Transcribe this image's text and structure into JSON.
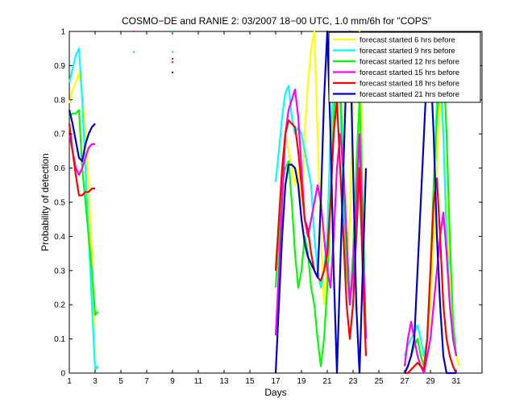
{
  "chart_data": {
    "type": "line",
    "title": "COSMO−DE and RANIE 2: 03/2007 18−00 UTC, 1.0 mm/6h for \"COPS\"",
    "xlabel": "Days",
    "ylabel": "Probability of detection",
    "xlim": [
      1,
      33
    ],
    "ylim": [
      0,
      1
    ],
    "xticks": [
      1,
      3,
      5,
      7,
      9,
      11,
      13,
      15,
      17,
      19,
      21,
      23,
      25,
      27,
      29,
      31
    ],
    "yticks": [
      0,
      0.1,
      0.2,
      0.3,
      0.4,
      0.5,
      0.6,
      0.7,
      0.8,
      0.9,
      1
    ],
    "legend_position": "top-right",
    "series": [
      {
        "name": "forecast started 6 hrs before",
        "color": "#ffff00",
        "x": [
          1,
          1.25,
          1.5,
          1.75,
          2,
          2.25,
          2.5,
          2.75,
          3,
          3.25,
          null,
          17,
          17.25,
          17.5,
          17.75,
          18,
          18.25,
          18.5,
          18.75,
          19,
          19.25,
          19.5,
          19.75,
          20,
          20.25,
          20.5,
          20.75,
          21,
          21.25,
          21.5,
          21.75,
          22,
          22.25,
          22.5,
          22.75,
          23,
          23.25,
          23.5,
          23.75,
          24,
          null,
          27,
          27.25,
          27.5,
          27.75,
          28,
          28.25,
          28.5,
          28.75,
          29,
          29.25,
          29.5,
          29.75,
          30,
          30.25,
          30.5,
          30.75,
          31,
          31.25
        ],
        "y": [
          0.79,
          0.83,
          0.85,
          0.88,
          0.82,
          0.7,
          0.55,
          0.35,
          0.01,
          0.02,
          null,
          0.3,
          0.45,
          0.6,
          0.7,
          0.65,
          0.6,
          0.55,
          0.6,
          0.5,
          0.7,
          0.85,
          0.95,
          1,
          0.7,
          0.4,
          0.2,
          0.35,
          0.6,
          0.8,
          0.9,
          0.85,
          0.6,
          0.3,
          0.45,
          0.8,
          0.95,
          1.0,
          0.5,
          0.1,
          null,
          0.0,
          0.02,
          0.05,
          0.08,
          0.1,
          0.05,
          0.02,
          0.1,
          0.2,
          0.4,
          0.6,
          0.8,
          0.7,
          0.5,
          0.3,
          0.1,
          0.05,
          0.02
        ]
      },
      {
        "name": "forecast started 9 hrs before",
        "color": "#00ffff",
        "x": [
          1,
          1.25,
          1.5,
          1.75,
          2,
          2.25,
          2.5,
          2.75,
          3,
          3.25,
          null,
          17,
          17.25,
          17.5,
          17.75,
          18,
          18.25,
          18.5,
          18.75,
          19,
          19.25,
          19.5,
          19.75,
          20,
          20.25,
          20.5,
          20.75,
          21,
          21.25,
          21.5,
          21.75,
          22,
          22.25,
          22.5,
          22.75,
          23,
          23.25,
          23.5,
          23.75,
          24,
          null,
          27,
          27.25,
          27.5,
          27.75,
          28,
          28.25,
          28.5,
          28.75,
          29,
          29.25,
          29.5,
          29.75,
          30,
          30.25,
          30.5,
          30.75,
          31
        ],
        "y": [
          0.85,
          0.89,
          0.93,
          0.95,
          0.8,
          0.6,
          0.4,
          0.2,
          0.01,
          0.02,
          null,
          0.56,
          0.65,
          0.75,
          0.82,
          0.84,
          0.75,
          0.7,
          0.72,
          0.7,
          0.65,
          0.6,
          0.55,
          0.4,
          0.3,
          0.25,
          0.3,
          0.4,
          0.7,
          0.85,
          0.95,
          0.8,
          0.5,
          0.3,
          0.2,
          0.3,
          0.5,
          0.7,
          0.4,
          0.1,
          null,
          0.05,
          0.08,
          0.1,
          0.12,
          0.14,
          0.1,
          0.05,
          0.1,
          0.3,
          0.5,
          0.8,
          0.9,
          0.7,
          0.4,
          0.2,
          0.1,
          0.05
        ]
      },
      {
        "name": "forecast started 12 hrs before",
        "color": "#00ff00",
        "x": [
          1,
          1.25,
          1.5,
          1.75,
          2,
          2.25,
          2.5,
          2.75,
          3,
          3.25,
          null,
          17,
          17.25,
          17.5,
          17.75,
          18,
          18.25,
          18.5,
          18.75,
          19,
          19.25,
          19.5,
          19.75,
          20,
          20.25,
          20.5,
          20.75,
          21,
          21.25,
          21.5,
          21.75,
          22,
          22.25,
          22.5,
          22.75,
          23,
          23.25,
          23.5,
          23.75,
          24,
          null,
          27,
          27.25,
          27.5,
          27.75,
          28,
          28.25,
          28.5,
          28.75,
          29,
          29.25,
          29.5,
          29.75,
          30,
          30.25,
          30.5,
          30.75,
          31
        ],
        "y": [
          0.75,
          0.76,
          0.76,
          0.77,
          0.6,
          0.5,
          0.4,
          0.3,
          0.17,
          0.18,
          null,
          0.25,
          0.4,
          0.55,
          0.6,
          0.62,
          0.5,
          0.35,
          0.25,
          0.3,
          0.4,
          0.35,
          0.25,
          0.2,
          0.1,
          0.02,
          0.1,
          0.25,
          0.5,
          0.75,
          0.9,
          0.85,
          0.6,
          0.3,
          0.2,
          0.35,
          0.6,
          0.8,
          0.5,
          0.1,
          null,
          0.0,
          0.02,
          0.05,
          0.08,
          0.1,
          0.05,
          0.02,
          0.1,
          0.3,
          0.55,
          0.75,
          0.85,
          0.92,
          0.7,
          0.4,
          0.15,
          0.05
        ]
      },
      {
        "name": "forecast started 15 hrs before",
        "color": "#ff00ff",
        "x": [
          1,
          1.25,
          1.5,
          1.75,
          2,
          2.25,
          2.5,
          2.75,
          3,
          null,
          17,
          17.25,
          17.5,
          17.75,
          18,
          18.25,
          18.5,
          18.75,
          19,
          19.25,
          19.5,
          19.75,
          20,
          20.25,
          20.5,
          20.75,
          21,
          21.25,
          21.5,
          21.75,
          22,
          22.25,
          22.5,
          22.75,
          23,
          23.25,
          23.5,
          23.75,
          24,
          null,
          27,
          27.25,
          27.5,
          27.75,
          28,
          28.25,
          28.5,
          28.75,
          29,
          29.25,
          29.5,
          29.75,
          30,
          30.25,
          30.5,
          30.75,
          31
        ],
        "y": [
          0.7,
          0.65,
          0.6,
          0.58,
          0.6,
          0.63,
          0.66,
          0.67,
          0.67,
          null,
          0.11,
          0.3,
          0.5,
          0.7,
          0.77,
          0.8,
          0.83,
          0.75,
          0.6,
          0.45,
          0.4,
          0.45,
          0.5,
          0.55,
          0.5,
          0.4,
          0.3,
          0.25,
          0.4,
          0.6,
          0.7,
          0.6,
          0.4,
          0.2,
          0.3,
          0.5,
          0.7,
          0.4,
          0.1,
          null,
          0.02,
          0.1,
          0.15,
          0.1,
          0.05,
          0.02,
          0.0,
          0.05,
          0.1,
          0.2,
          0.3,
          0.4,
          0.47,
          0.35,
          0.2,
          0.1,
          0.05
        ]
      },
      {
        "name": "forecast started 18 hrs before",
        "color": "#ff0000",
        "x": [
          1,
          1.25,
          1.5,
          1.75,
          2,
          2.25,
          2.5,
          2.75,
          3,
          null,
          17,
          17.25,
          17.5,
          17.75,
          18,
          18.25,
          18.5,
          18.75,
          19,
          19.25,
          19.5,
          19.75,
          20,
          20.25,
          20.5,
          20.75,
          21,
          21.25,
          21.5,
          21.75,
          22,
          22.25,
          22.5,
          22.75,
          23,
          23.25,
          23.5,
          23.75,
          24,
          null,
          27,
          27.25,
          27.5,
          27.75,
          28,
          28.25,
          28.5,
          28.75,
          29,
          29.25,
          29.5,
          29.75,
          30,
          30.25,
          30.5,
          30.75,
          31
        ],
        "y": [
          0.73,
          0.65,
          0.58,
          0.52,
          0.52,
          0.53,
          0.53,
          0.54,
          0.54,
          null,
          0.3,
          0.45,
          0.6,
          0.7,
          0.74,
          0.73,
          0.72,
          0.65,
          0.55,
          0.45,
          0.42,
          0.35,
          0.3,
          0.28,
          0.27,
          0.3,
          0.35,
          0.5,
          0.7,
          0.8,
          0.6,
          0.4,
          0.2,
          0.1,
          0.2,
          0.4,
          0.6,
          0.3,
          0.05,
          null,
          0.0,
          0.0,
          0.01,
          0.02,
          0.03,
          0.02,
          0.01,
          0.1,
          0.3,
          0.5,
          0.57,
          0.4,
          0.2,
          0.1,
          0.05,
          0.02,
          0.0
        ]
      },
      {
        "name": "forecast started 21 hrs before",
        "color": "#0000cd",
        "x": [
          1,
          1.25,
          1.5,
          1.75,
          2,
          2.25,
          2.5,
          2.75,
          3,
          null,
          17,
          17.25,
          17.5,
          17.75,
          18,
          18.25,
          18.5,
          18.75,
          19,
          19.25,
          19.5,
          19.75,
          20,
          20.25,
          20.5,
          20.75,
          21,
          21.25,
          21.5,
          21.75,
          22,
          22.25,
          22.5,
          22.75,
          23,
          23.25,
          23.5,
          23.75,
          24,
          null,
          27,
          27.25,
          27.5,
          27.75,
          28,
          28.25,
          28.5,
          28.75,
          29,
          29.25,
          29.5,
          29.75,
          30,
          30.25,
          30.5,
          30.75,
          31
        ],
        "y": [
          0.77,
          0.73,
          0.68,
          0.63,
          0.62,
          0.67,
          0.7,
          0.72,
          0.73,
          null,
          0.0,
          0.2,
          0.4,
          0.55,
          0.61,
          0.61,
          0.6,
          0.55,
          0.45,
          0.38,
          0.34,
          0.32,
          0.3,
          0.28,
          0.5,
          0.8,
          1.0,
          0.7,
          0.3,
          0.0,
          0.3,
          0.6,
          0.9,
          1.0,
          0.6,
          0.2,
          0.0,
          0.3,
          0.6,
          null,
          0.0,
          0.02,
          0.05,
          0.1,
          0.3,
          0.5,
          0.7,
          0.9,
          0.91,
          0.7,
          0.4,
          0.2,
          0.05,
          0.0,
          0.0,
          0.0,
          0.0
        ]
      }
    ],
    "markers": [
      {
        "x": 6,
        "y": 1.0,
        "color": "#ff00ff"
      },
      {
        "x": 6,
        "y": 0.94,
        "color": "#00ff00"
      },
      {
        "x": 9,
        "y": 1.0,
        "color": "#00ffff"
      },
      {
        "x": 9,
        "y": 0.94,
        "color": "#00ff00"
      },
      {
        "x": 9,
        "y": 0.92,
        "color": "#ff0000"
      },
      {
        "x": 9,
        "y": 0.91,
        "color": "#ff00ff"
      },
      {
        "x": 9,
        "y": 0.88,
        "color": "#0000cd"
      }
    ]
  }
}
